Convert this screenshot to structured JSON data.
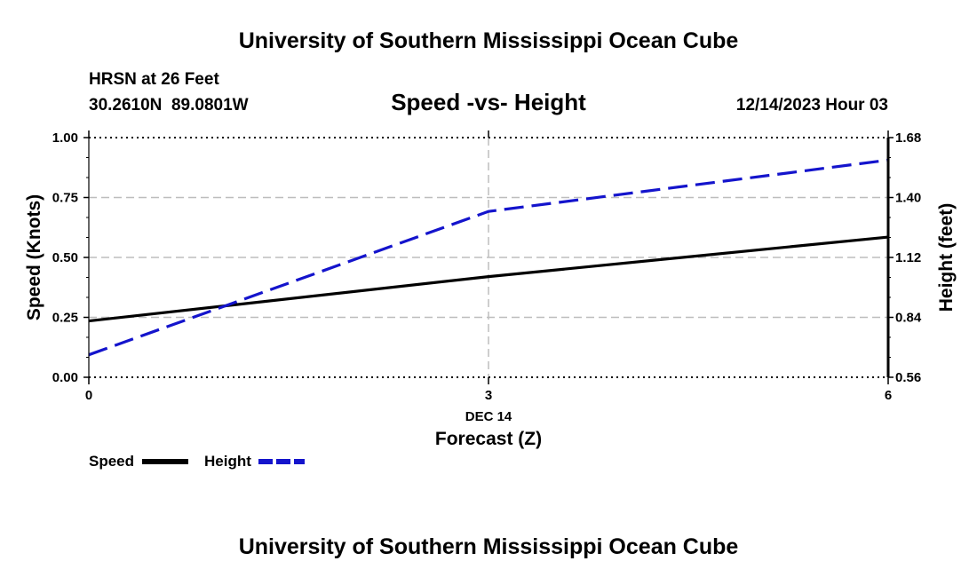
{
  "header": {
    "title": "University of Southern Mississippi Ocean Cube",
    "station": "HRSN at 26 Feet",
    "coords": "30.2610N  89.0801W",
    "datetime": "12/14/2023 Hour 03"
  },
  "footer": {
    "title": "University of Southern Mississippi Ocean Cube"
  },
  "chart_data": {
    "type": "line",
    "title": "Speed -vs- Height",
    "xlabel": "Forecast (Z)",
    "xdate": "DEC 14",
    "ylabel": "Speed (Knots)",
    "y2label": "Height (feet)",
    "x": [
      0,
      3,
      6
    ],
    "xlim": [
      0,
      6
    ],
    "ylim": [
      0,
      1
    ],
    "y2lim": [
      0.56,
      1.68
    ],
    "x_ticks": [
      "0",
      "3",
      "6"
    ],
    "y_ticks": [
      "0.00",
      "0.25",
      "0.50",
      "0.75",
      "1.00"
    ],
    "y2_ticks": [
      "0.56",
      "0.84",
      "1.12",
      "1.40",
      "1.68"
    ],
    "grid": true,
    "series": [
      {
        "name": "Speed",
        "axis": "left",
        "values": [
          0.235,
          0.42,
          0.585
        ],
        "color": "#000000",
        "style": "solid"
      },
      {
        "name": "Height",
        "axis": "right",
        "values": [
          0.665,
          1.335,
          1.575
        ],
        "color": "#1414cc",
        "style": "dashed"
      }
    ],
    "legend": [
      {
        "label": "Speed",
        "color": "#000000",
        "style": "solid"
      },
      {
        "label": "Height",
        "color": "#1414cc",
        "style": "dashed"
      }
    ],
    "legend_position": "bottom-left"
  }
}
